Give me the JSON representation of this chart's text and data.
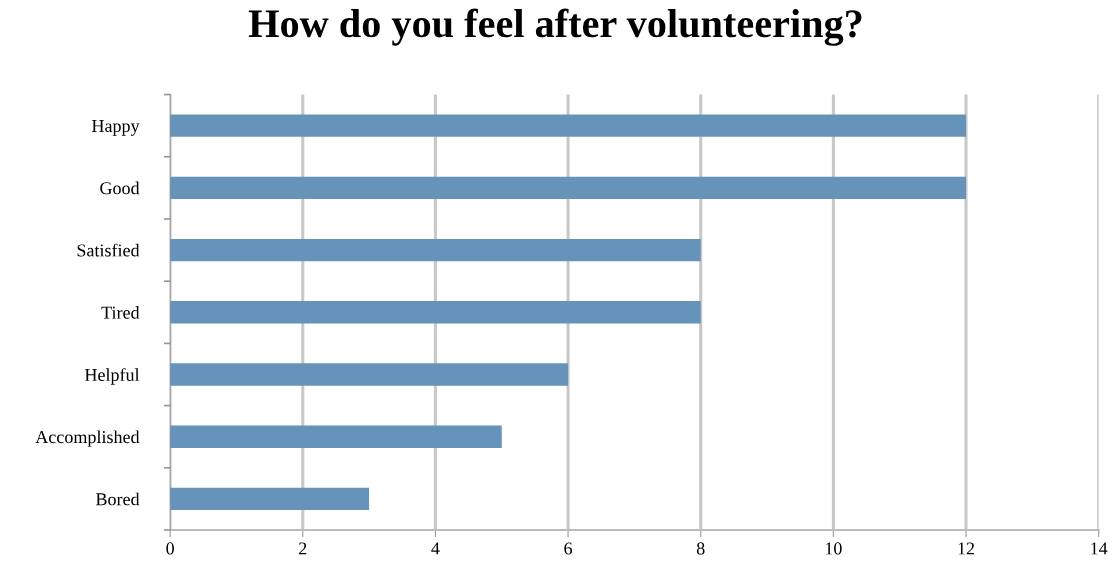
{
  "chart_data": {
    "type": "bar",
    "title": "How do you feel after volunteering?",
    "orientation": "horizontal",
    "categories": [
      "Happy",
      "Good",
      "Satisfied",
      "Tired",
      "Helpful",
      "Accomplished",
      "Bored"
    ],
    "values": [
      12,
      12,
      8,
      8,
      6,
      5,
      3
    ],
    "color": "#6593b9",
    "xlim": [
      0,
      14
    ],
    "xticks": [
      0,
      2,
      4,
      6,
      8,
      10,
      12,
      14
    ],
    "grid": "x"
  }
}
